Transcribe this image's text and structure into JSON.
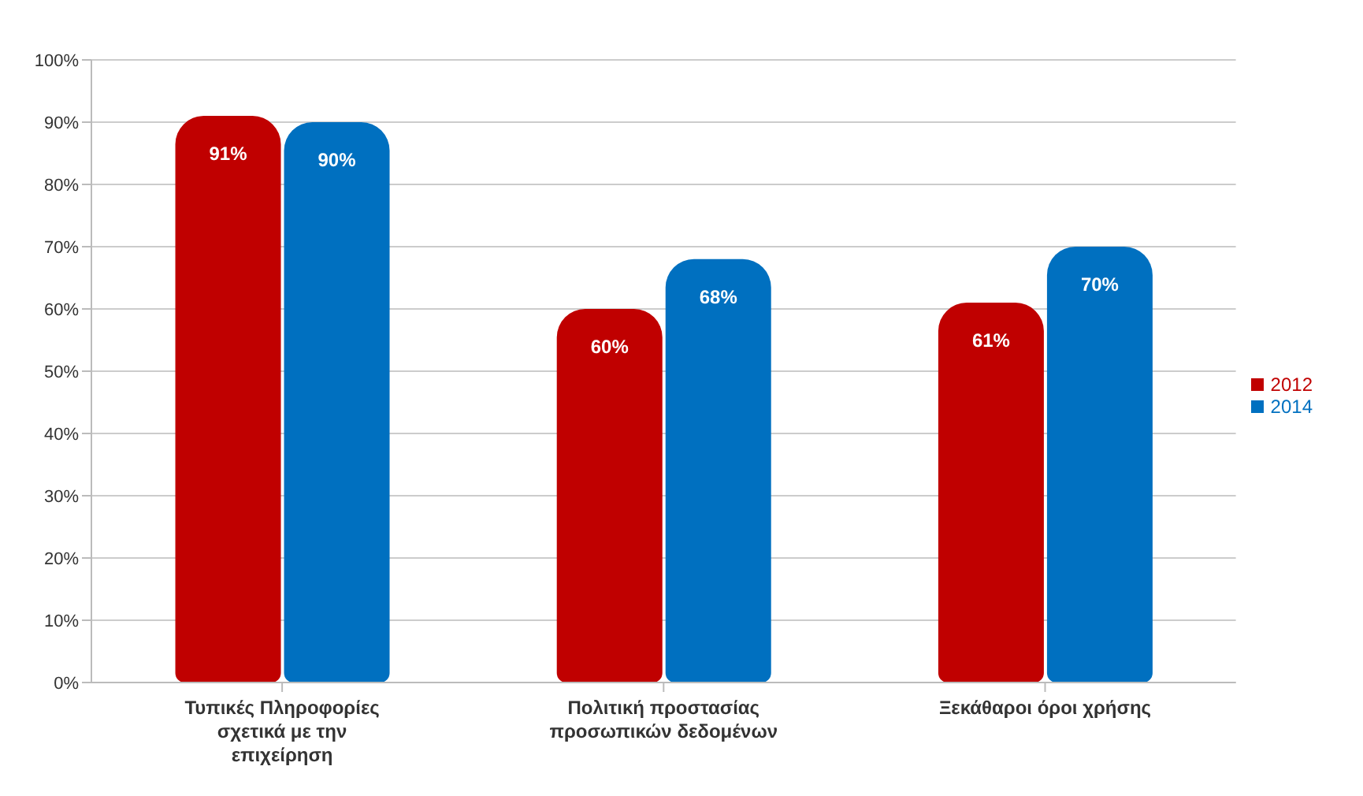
{
  "chart_data": {
    "type": "bar",
    "categories": [
      "Τυπικές Πληροφορίες σχετικά με την επιχείρηση",
      "Πολιτική προστασίας προσωπικών δεδομένων",
      "Ξεκάθαροι όροι χρήσης"
    ],
    "series": [
      {
        "name": "2012",
        "color": "#c00000",
        "values": [
          91,
          60,
          61
        ],
        "value_labels": [
          "91%",
          "60%",
          "61%"
        ]
      },
      {
        "name": "2014",
        "color": "#0070c0",
        "values": [
          90,
          68,
          70
        ],
        "value_labels": [
          "90%",
          "68%",
          "70%"
        ]
      }
    ],
    "ylim": [
      0,
      100
    ],
    "yticks": [
      {
        "value": 0,
        "label": "0%"
      },
      {
        "value": 10,
        "label": "10%"
      },
      {
        "value": 20,
        "label": "20%"
      },
      {
        "value": 30,
        "label": "30%"
      },
      {
        "value": 40,
        "label": "40%"
      },
      {
        "value": 50,
        "label": "50%"
      },
      {
        "value": 60,
        "label": "60%"
      },
      {
        "value": 70,
        "label": "70%"
      },
      {
        "value": 80,
        "label": "80%"
      },
      {
        "value": 90,
        "label": "90%"
      },
      {
        "value": 100,
        "label": "100%"
      }
    ],
    "grid": "y",
    "legend": "right"
  }
}
